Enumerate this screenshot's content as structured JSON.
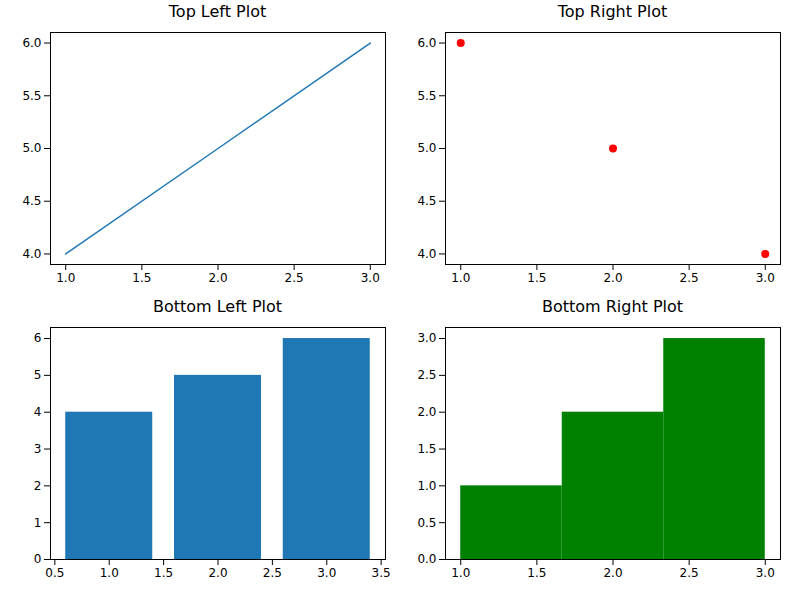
{
  "chart_data": [
    {
      "type": "line",
      "title": "Top Left Plot",
      "x": [
        1,
        2,
        3
      ],
      "values": [
        4,
        5,
        6
      ],
      "color": "#1f77b4",
      "xlim": [
        0.9,
        3.1
      ],
      "xticks": [
        {
          "value": 1,
          "label": "1.0"
        },
        1.5,
        {
          "value": 2,
          "label": "2.0"
        },
        2.5,
        {
          "value": 3,
          "label": "3.0"
        }
      ],
      "ylim": [
        3.9,
        6.1
      ],
      "yticks": [
        {
          "value": 4,
          "label": "4.0"
        },
        4.5,
        {
          "value": 5,
          "label": "5.0"
        },
        5.5,
        {
          "value": 6,
          "label": "6.0"
        }
      ],
      "grid": false
    },
    {
      "type": "scatter",
      "title": "Top Right Plot",
      "x": [
        1,
        2,
        3
      ],
      "values": [
        6,
        5,
        4
      ],
      "color": "red",
      "marker": "circle",
      "xlim": [
        0.9,
        3.1
      ],
      "xticks": [
        {
          "value": 1,
          "label": "1.0"
        },
        1.5,
        {
          "value": 2,
          "label": "2.0"
        },
        2.5,
        {
          "value": 3,
          "label": "3.0"
        }
      ],
      "ylim": [
        3.9,
        6.1
      ],
      "yticks": [
        {
          "value": 4,
          "label": "4.0"
        },
        4.5,
        {
          "value": 5,
          "label": "5.0"
        },
        5.5,
        {
          "value": 6,
          "label": "6.0"
        }
      ],
      "grid": false
    },
    {
      "type": "bar",
      "title": "Bottom Left Plot",
      "x": [
        1,
        2,
        3
      ],
      "values": [
        4,
        5,
        6
      ],
      "color": "#1f77b4",
      "xlim": [
        0.46,
        3.54
      ],
      "xticks": [
        0.5,
        {
          "value": 1,
          "label": "1.0"
        },
        1.5,
        {
          "value": 2,
          "label": "2.0"
        },
        2.5,
        {
          "value": 3,
          "label": "3.0"
        },
        3.5
      ],
      "ylim": [
        0,
        6.3
      ],
      "yticks": [
        0,
        1,
        2,
        3,
        4,
        5,
        6
      ],
      "grid": false
    },
    {
      "type": "histogram",
      "title": "Bottom Right Plot",
      "bins": [
        1,
        1.6667,
        2.3333,
        3
      ],
      "values": [
        1,
        2,
        3
      ],
      "color": "green",
      "xlim": [
        0.9,
        3.1
      ],
      "xticks": [
        {
          "value": 1,
          "label": "1.0"
        },
        1.5,
        {
          "value": 2,
          "label": "2.0"
        },
        2.5,
        {
          "value": 3,
          "label": "3.0"
        }
      ],
      "ylim": [
        0,
        3.15
      ],
      "yticks": [
        {
          "value": 0,
          "label": "0.0"
        },
        0.5,
        {
          "value": 1,
          "label": "1.0"
        },
        1.5,
        {
          "value": 2,
          "label": "2.0"
        },
        2.5,
        {
          "value": 3,
          "label": "3.0"
        }
      ],
      "grid": false
    }
  ]
}
